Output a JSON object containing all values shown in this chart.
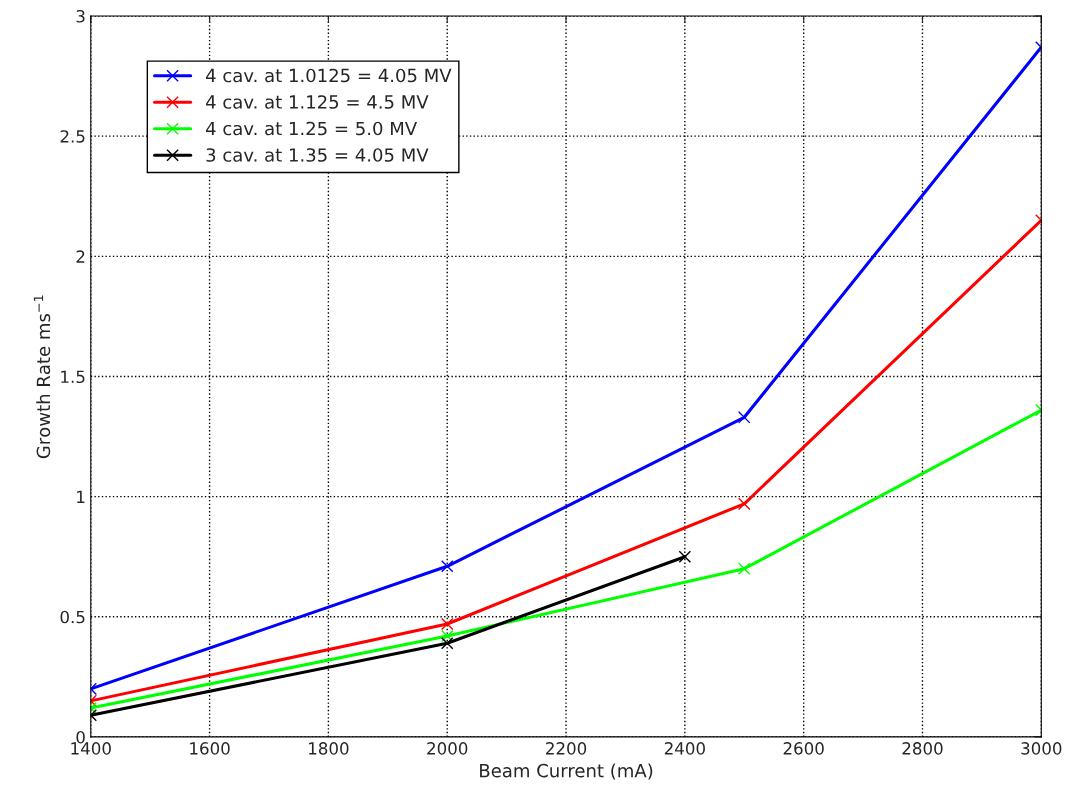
{
  "chart_data": {
    "type": "line",
    "xlabel": "Beam Current (mA)",
    "ylabel": "Growth Rate ms$^{−1}$",
    "xlim": [
      1400,
      3000
    ],
    "xticks": [
      1400,
      1600,
      1800,
      2000,
      2200,
      2400,
      2600,
      2800,
      3000
    ],
    "ylim": [
      0,
      3
    ],
    "yticks": [
      0,
      0.5,
      1,
      1.5,
      2,
      2.5,
      3
    ],
    "grid": true,
    "legend": "top left",
    "marker": "cross",
    "line_style": "solid",
    "series": [
      {
        "name": "4 cav. at 1.0125 = 4.05 MV",
        "color": "#0000ff",
        "x": [
          1400,
          2000,
          2500,
          3000
        ],
        "values": [
          0.2,
          0.71,
          1.33,
          2.87
        ]
      },
      {
        "name": "4 cav. at 1.125 = 4.5 MV",
        "color": "#ff0000",
        "x": [
          1400,
          2000,
          2500,
          3000
        ],
        "values": [
          0.15,
          0.47,
          0.97,
          2.15
        ]
      },
      {
        "name": "4 cav. at 1.25 = 5.0 MV",
        "color": "#00ff00",
        "x": [
          1400,
          2000,
          2500,
          3000
        ],
        "values": [
          0.12,
          0.42,
          0.7,
          1.36
        ]
      },
      {
        "name": "3 cav. at 1.35 = 4.05 MV",
        "color": "#000000",
        "x": [
          1400,
          2000,
          2400
        ],
        "values": [
          0.09,
          0.39,
          0.75
        ]
      }
    ]
  }
}
